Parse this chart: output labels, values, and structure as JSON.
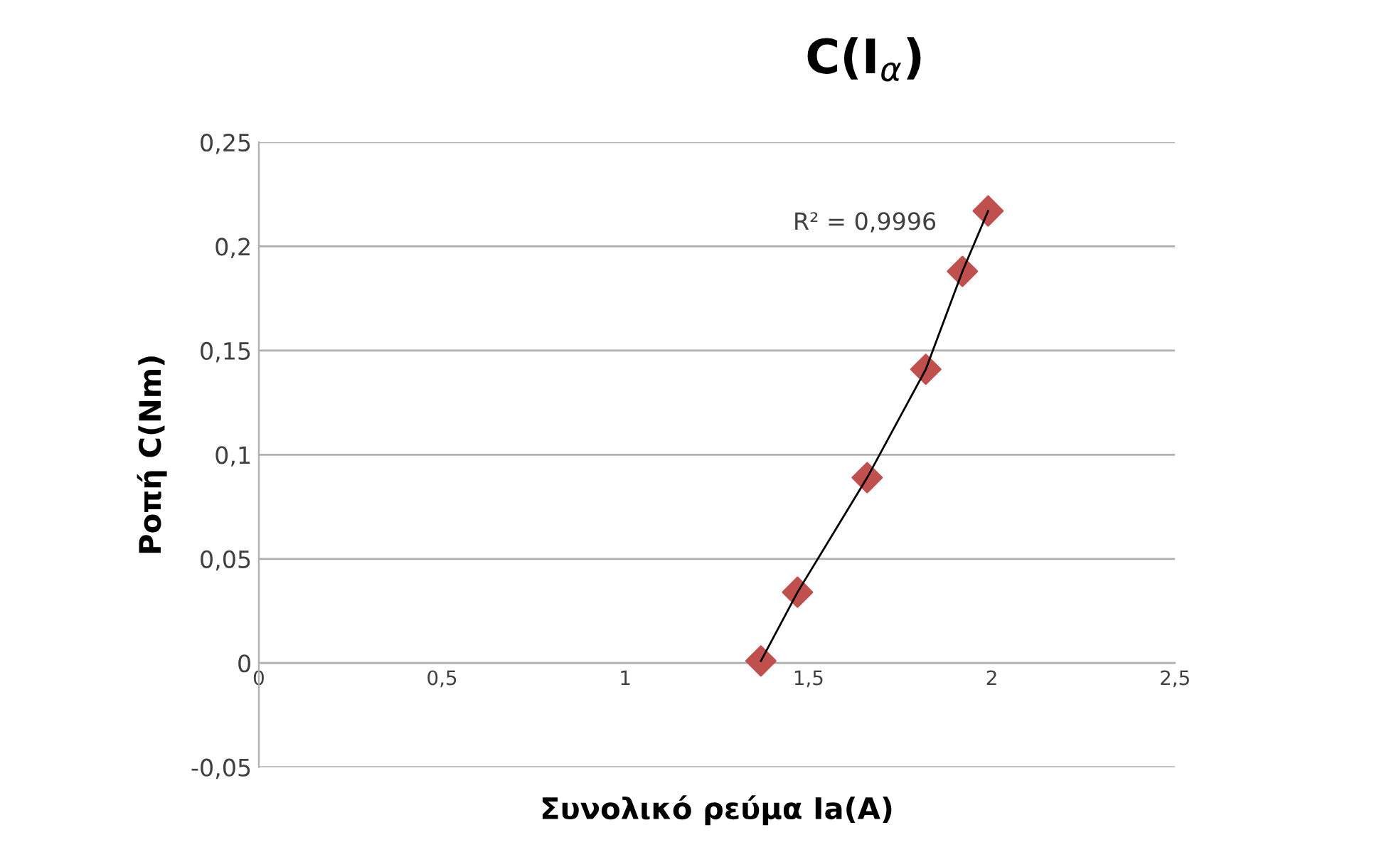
{
  "chart_data": {
    "type": "scatter",
    "title": "C(I$_{α}$)",
    "xlabel": "Συνολικό ρεύμα Ia(A)",
    "ylabel": "Ροπή C(Nm)",
    "annotations": [
      "R² = 0,9996"
    ],
    "series": [
      {
        "color": "#c0504d",
        "marker": "diamond",
        "x": [
          1.37,
          1.47,
          1.66,
          1.82,
          1.92,
          1.99
        ],
        "values": [
          0.001,
          0.034,
          0.089,
          0.141,
          0.188,
          0.217
        ]
      },
      {
        "type": "line",
        "color": "#000000",
        "x": [
          1.37,
          1.47,
          1.66,
          1.82,
          1.92,
          1.99
        ],
        "values": [
          0.001,
          0.034,
          0.089,
          0.141,
          0.188,
          0.217
        ]
      }
    ],
    "xlim": [
      0,
      2.5
    ],
    "ylim": [
      -0.05,
      0.25
    ],
    "xticks": [
      0,
      {
        "value": 0.5,
        "label": "0,5"
      },
      1,
      {
        "value": 1.5,
        "label": "1,5"
      },
      2,
      {
        "value": 2.5,
        "label": "2,5"
      }
    ],
    "yticks": [
      {
        "value": -0.05,
        "label": "-0,05"
      },
      0,
      {
        "value": 0.05,
        "label": "0,05"
      },
      {
        "value": 0.1,
        "label": "0,1"
      },
      {
        "value": 0.15,
        "label": "0,15"
      },
      {
        "value": 0.2,
        "label": "0,2"
      },
      {
        "value": 0.25,
        "label": "0,25"
      }
    ],
    "grid": "y",
    "legend": false
  }
}
